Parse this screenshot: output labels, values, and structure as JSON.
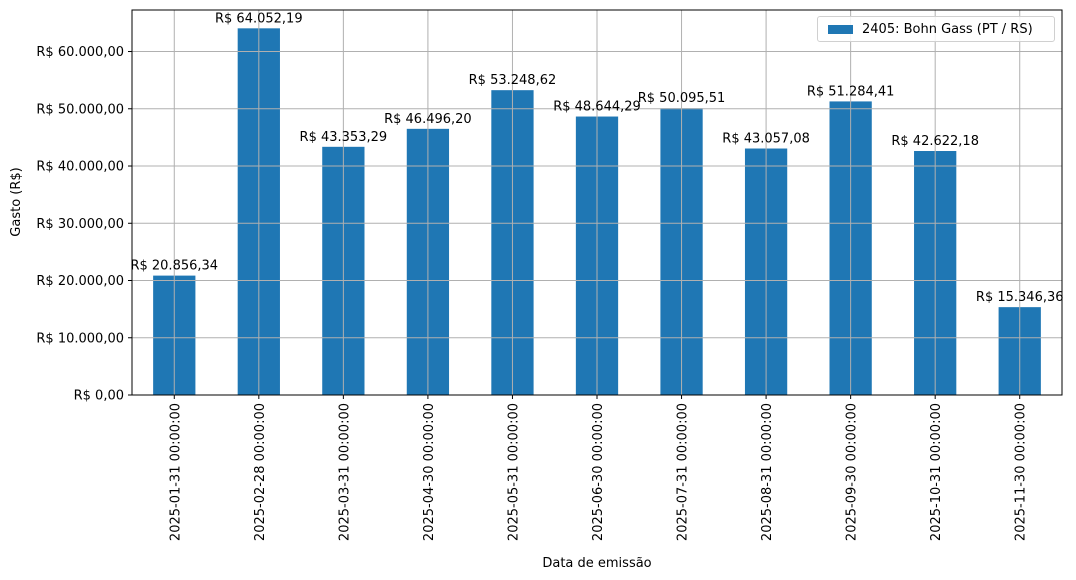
{
  "chart_data": {
    "type": "bar",
    "title": "",
    "xlabel": "Data de emissão",
    "ylabel": "Gasto (R$)",
    "ylim": [
      0,
      67254
    ],
    "grid": true,
    "legend_position": "upper right",
    "bar_color": "#1f77b4",
    "categories": [
      "2025-01-31 00:00:00",
      "2025-02-28 00:00:00",
      "2025-03-31 00:00:00",
      "2025-04-30 00:00:00",
      "2025-05-31 00:00:00",
      "2025-06-30 00:00:00",
      "2025-07-31 00:00:00",
      "2025-08-31 00:00:00",
      "2025-09-30 00:00:00",
      "2025-10-31 00:00:00",
      "2025-11-30 00:00:00"
    ],
    "series": [
      {
        "name": "2405: Bohn Gass (PT / RS)",
        "values": [
          20856.34,
          64052.19,
          43353.29,
          46496.2,
          53248.62,
          48644.29,
          50095.51,
          43057.08,
          51284.41,
          42622.18,
          15346.36
        ],
        "labels": [
          "R$ 20.856,34",
          "R$ 64.052,19",
          "R$ 43.353,29",
          "R$ 46.496,20",
          "R$ 53.248,62",
          "R$ 48.644,29",
          "R$ 50.095,51",
          "R$ 43.057,08",
          "R$ 51.284,41",
          "R$ 42.622,18",
          "R$ 15.346,36"
        ]
      }
    ],
    "yticks": [
      0,
      10000,
      20000,
      30000,
      40000,
      50000,
      60000
    ],
    "ytick_labels": [
      "R$ 0,00",
      "R$ 10.000,00",
      "R$ 20.000,00",
      "R$ 30.000,00",
      "R$ 40.000,00",
      "R$ 50.000,00",
      "R$ 60.000,00"
    ]
  },
  "legend": {
    "label": "2405: Bohn Gass (PT / RS)",
    "color": "#1f77b4"
  },
  "axes": {
    "xlabel": "Data de emissão",
    "ylabel": "Gasto (R$)"
  }
}
